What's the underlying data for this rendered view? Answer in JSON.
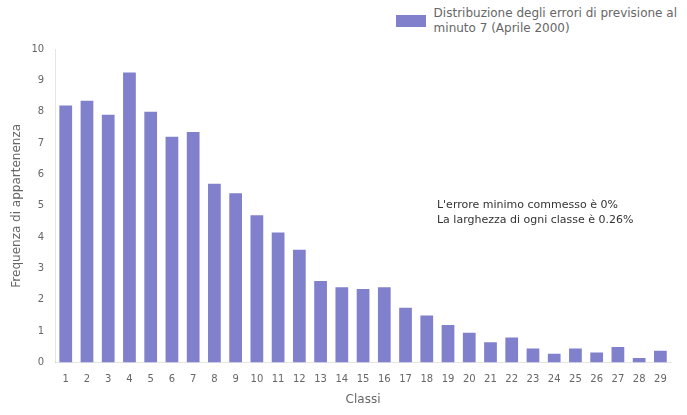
{
  "chart_data": {
    "type": "bar",
    "categories": [
      1,
      2,
      3,
      4,
      5,
      6,
      7,
      8,
      9,
      10,
      11,
      12,
      13,
      14,
      15,
      16,
      17,
      18,
      19,
      20,
      21,
      22,
      23,
      24,
      25,
      26,
      27,
      28,
      29
    ],
    "series": [
      {
        "name": "Distribuzione degli errori di previsione al\nminuto 7 (Aprile 2000)",
        "color": "#8080cc",
        "values": [
          8.2,
          8.35,
          7.9,
          9.25,
          8.0,
          7.2,
          7.35,
          5.7,
          5.4,
          4.7,
          4.15,
          3.6,
          2.6,
          2.4,
          2.35,
          2.4,
          1.75,
          1.5,
          1.2,
          0.95,
          0.65,
          0.8,
          0.45,
          0.28,
          0.45,
          0.32,
          0.5,
          0.15,
          0.38
        ]
      }
    ],
    "xlabel": "Classi",
    "ylabel": "Frequenza di appartenenza",
    "ylim": [
      0,
      10
    ],
    "yticks": [
      0,
      1,
      2,
      3,
      4,
      5,
      6,
      7,
      8,
      9,
      10
    ],
    "annotations": [
      "L'errore minimo commesso è 0%",
      "La larghezza di ogni classe è 0.26%"
    ],
    "legend": "upper right",
    "grid": false
  }
}
